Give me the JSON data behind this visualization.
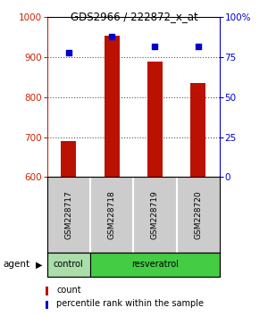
{
  "title": "GDS2966 / 222872_x_at",
  "samples": [
    "GSM228717",
    "GSM228718",
    "GSM228719",
    "GSM228720"
  ],
  "counts": [
    690,
    955,
    890,
    835
  ],
  "percentiles": [
    78,
    88,
    82,
    82
  ],
  "ylim_left": [
    600,
    1000
  ],
  "ylim_right": [
    0,
    100
  ],
  "yticks_left": [
    600,
    700,
    800,
    900,
    1000
  ],
  "yticks_right": [
    0,
    25,
    50,
    75,
    100
  ],
  "ytick_labels_right": [
    "0",
    "25",
    "50",
    "75",
    "100%"
  ],
  "bar_color": "#bb1100",
  "dot_color": "#0000cc",
  "bar_width": 0.35,
  "groups": [
    {
      "label": "control",
      "color": "#aaddaa"
    },
    {
      "label": "resveratrol",
      "color": "#44cc44"
    }
  ],
  "agent_label": "agent",
  "legend_count_label": "count",
  "legend_pct_label": "percentile rank within the sample",
  "grid_color": "#555555",
  "background_color": "#ffffff",
  "plot_bg_color": "#ffffff",
  "sample_box_color": "#cccccc",
  "left_tick_color": "#cc2200",
  "right_tick_color": "#0000cc"
}
